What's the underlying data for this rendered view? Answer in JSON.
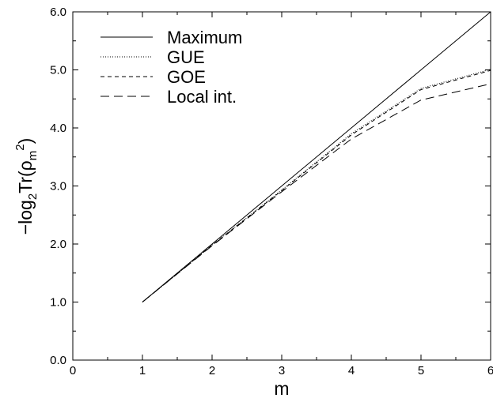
{
  "chart_data": {
    "type": "line",
    "xlabel": "m",
    "ylabel": {
      "main": "−log",
      "log_sub": "2",
      "mid": "Tr(ρ",
      "rho_sub": "m",
      "sup": "2",
      "close": ")"
    },
    "xlim": [
      0,
      6
    ],
    "ylim": [
      0,
      6
    ],
    "x_ticks": [
      "0",
      "1",
      "2",
      "3",
      "4",
      "5",
      "6"
    ],
    "y_ticks": [
      "0.0",
      "1.0",
      "2.0",
      "3.0",
      "4.0",
      "5.0",
      "6.0"
    ],
    "grid": false,
    "legend_position": "top-left",
    "series": [
      {
        "name": "Maximum",
        "dash": "solid",
        "x": [
          1,
          2,
          3,
          4,
          5,
          6
        ],
        "y": [
          1.0,
          2.0,
          3.0,
          4.0,
          5.0,
          6.0
        ]
      },
      {
        "name": "GUE",
        "dash": "dotted",
        "x": [
          1,
          2,
          3,
          4,
          5,
          6
        ],
        "y": [
          1.0,
          1.98,
          2.93,
          3.9,
          4.68,
          5.01
        ]
      },
      {
        "name": "GOE",
        "dash": "dashed",
        "x": [
          1,
          2,
          3,
          4,
          5,
          6
        ],
        "y": [
          1.0,
          1.98,
          2.92,
          3.88,
          4.66,
          4.99
        ]
      },
      {
        "name": "Local int.",
        "dash": "longdash",
        "x": [
          1,
          2,
          3,
          4,
          5,
          6
        ],
        "y": [
          1.0,
          1.97,
          2.9,
          3.81,
          4.48,
          4.76
        ]
      }
    ]
  }
}
